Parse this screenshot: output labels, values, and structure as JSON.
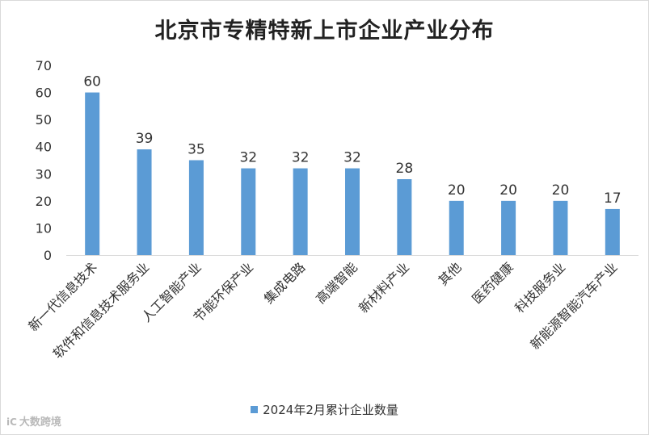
{
  "chart_data": {
    "type": "bar",
    "title": "北京市专精特新上市企业产业分布",
    "categories": [
      "新一代信息技术",
      "软件和信息技术服务业",
      "人工智能产业",
      "节能环保产业",
      "集成电路",
      "高端智能",
      "新材料产业",
      "其他",
      "医药健康",
      "科技服务业",
      "新能源智能汽车产业"
    ],
    "series": [
      {
        "name": "2024年2月累计企业数量",
        "values": [
          60,
          39,
          35,
          32,
          32,
          32,
          28,
          20,
          20,
          20,
          17
        ],
        "color": "#5b9bd5"
      }
    ],
    "ylim": [
      0,
      70
    ],
    "yticks": [
      0,
      10,
      20,
      30,
      40,
      50,
      60,
      70
    ],
    "grid": false,
    "legend": "bottom",
    "data_labels": true
  },
  "watermark": {
    "logo": "iC",
    "text": "大数跨境"
  }
}
